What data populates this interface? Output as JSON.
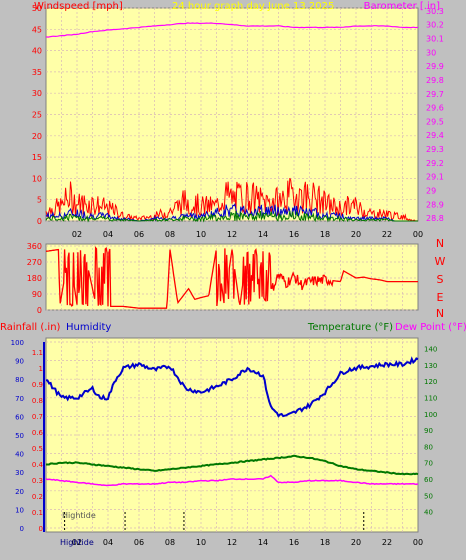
{
  "title": "24 hour graph day   June 13 2025",
  "colors": {
    "background": "#c0c0c0",
    "plot": "#ffffa8",
    "grid": "#d8b8b8",
    "red": "#ff0000",
    "blue": "#0000cc",
    "green": "#007700",
    "magenta": "#ff00ff",
    "yellow": "#ffff00",
    "black": "#000000"
  },
  "x_tick_labels": [
    "02",
    "04",
    "06",
    "08",
    "10",
    "12",
    "14",
    "16",
    "18",
    "20",
    "22",
    "00"
  ],
  "chart_data": [
    {
      "type": "line",
      "name": "wind-barometer",
      "left_label": "Windspeed [mph]",
      "right_label": "Barometer [.in]",
      "left_ticks": [
        "0",
        "5",
        "10",
        "15",
        "20",
        "25",
        "30",
        "35",
        "40",
        "45",
        "50"
      ],
      "right_ticks": [
        "28.8",
        "28.9",
        "29",
        "29.1",
        "29.2",
        "29.3",
        "29.4",
        "29.5",
        "29.6",
        "29.7",
        "29.8",
        "29.9",
        "30",
        "30.1",
        "30.2",
        "30.3"
      ],
      "x_range": [
        0,
        24
      ],
      "y_range_left": [
        0,
        50
      ],
      "y_range_right": [
        28.78,
        30.32
      ],
      "barometer": {
        "hours": [
          0,
          1,
          2,
          3,
          4,
          5,
          6,
          7,
          8,
          9,
          10,
          11,
          12,
          13,
          14,
          15,
          16,
          17,
          18,
          19,
          20,
          21,
          22,
          23,
          24
        ],
        "values": [
          30.11,
          30.12,
          30.13,
          30.15,
          30.16,
          30.17,
          30.18,
          30.19,
          30.2,
          30.21,
          30.21,
          30.21,
          30.2,
          30.19,
          30.19,
          30.19,
          30.18,
          30.18,
          30.18,
          30.18,
          30.19,
          30.19,
          30.19,
          30.18,
          30.18
        ]
      },
      "wind_profile": {
        "hours": [
          0,
          1,
          1.5,
          2,
          3,
          4,
          4.5,
          5,
          6,
          7,
          8,
          9,
          10,
          11,
          11.5,
          12,
          13,
          14,
          15,
          16,
          17,
          17.5,
          18,
          19,
          19.5,
          20,
          21,
          22,
          22.5,
          23,
          23.5,
          24
        ],
        "gust_max": [
          4,
          6,
          10,
          7,
          7,
          5,
          4,
          2,
          1,
          2,
          4,
          8,
          6,
          6,
          11,
          9,
          10,
          8,
          8,
          11,
          10,
          9,
          7,
          5,
          6,
          6,
          3,
          3,
          2,
          2,
          0.5,
          0
        ],
        "avg_max": [
          2,
          2,
          3,
          3,
          2,
          2,
          1,
          1,
          0,
          1,
          1,
          2,
          2,
          3,
          4,
          4,
          4,
          4,
          4,
          4,
          3,
          3,
          2,
          2,
          1,
          1,
          1,
          1,
          0,
          0,
          0,
          0
        ]
      }
    },
    {
      "type": "line",
      "name": "wind-direction",
      "right_labels": [
        "N",
        "W",
        "S",
        "E",
        "N"
      ],
      "left_ticks": [
        "0",
        "90",
        "180",
        "270",
        "360"
      ],
      "x_range": [
        0,
        24
      ],
      "y_range": [
        0,
        360
      ],
      "profile": {
        "hours": [
          0,
          0.8,
          0.9,
          1.5,
          2.0,
          2.5,
          3.2,
          3.5,
          4.0,
          5.0,
          6.0,
          7.0,
          7.8,
          8.0,
          8.5,
          9.2,
          9.6,
          10.0,
          10.5,
          11.0,
          11.5,
          12.0,
          12.5,
          13.0,
          13.5,
          14.0,
          14.5,
          15.0,
          15.5,
          16.0,
          16.5,
          17.0,
          18.0,
          19.0,
          19.2,
          19.6,
          20.0,
          20.5,
          21.0,
          21.5,
          22.0,
          23.0,
          24.0
        ],
        "values": [
          330,
          340,
          30,
          330,
          30,
          320,
          40,
          300,
          20,
          20,
          10,
          10,
          10,
          340,
          40,
          120,
          60,
          70,
          80,
          350,
          30,
          340,
          20,
          340,
          60,
          330,
          100,
          200,
          150,
          190,
          140,
          160,
          170,
          160,
          220,
          200,
          180,
          185,
          175,
          170,
          160,
          160,
          160
        ]
      }
    },
    {
      "type": "line",
      "name": "rain-humidity-temperature",
      "left_labels": [
        "Rainfall (.in)",
        "Humidity"
      ],
      "right_labels": [
        "Temperature (°F)",
        "Dew Point (°F)"
      ],
      "hum_ticks": [
        "0",
        "10",
        "20",
        "30",
        "40",
        "50",
        "60",
        "70",
        "80",
        "90",
        "100"
      ],
      "rain_ticks": [
        "0",
        "0.1",
        "0.2",
        "0.3",
        "0.4",
        "0.5",
        "0.6",
        "0.7",
        "0.8",
        "0.9",
        "1",
        "1.1"
      ],
      "temp_ticks": [
        "40",
        "50",
        "60",
        "70",
        "80",
        "90",
        "100",
        "110",
        "120",
        "130",
        "140"
      ],
      "x_range": [
        0,
        24
      ],
      "humidity_range": [
        0,
        100
      ],
      "temp_range": [
        30,
        144
      ],
      "humidity": {
        "hours": [
          0,
          0.5,
          1,
          2,
          3,
          3.5,
          4,
          4.5,
          5,
          6,
          7,
          8,
          9,
          10,
          11,
          12,
          13,
          14,
          14.5,
          15,
          15.5,
          16,
          17,
          18,
          19,
          19.5,
          20,
          21,
          22,
          23,
          24
        ],
        "values": [
          80,
          75,
          70,
          70,
          75,
          70,
          70,
          80,
          86,
          88,
          85,
          87,
          75,
          73,
          76,
          80,
          86,
          82,
          65,
          61,
          60,
          62,
          66,
          73,
          83,
          85,
          86,
          87,
          88,
          88,
          91
        ]
      },
      "temperature": {
        "hours": [
          0,
          1,
          2,
          3,
          4,
          5,
          6,
          7,
          8,
          9,
          10,
          11,
          12,
          13,
          14,
          15,
          16,
          17,
          18,
          19,
          20,
          21,
          22,
          23,
          24
        ],
        "values": [
          69,
          70,
          70,
          69,
          68,
          67,
          66,
          65,
          66,
          67,
          68,
          69,
          70,
          71,
          72,
          73,
          74,
          73,
          71,
          68,
          66,
          65,
          64,
          63,
          63
        ]
      },
      "dewpoint": {
        "hours": [
          0,
          1,
          2,
          3,
          4,
          5,
          6,
          7,
          8,
          9,
          10,
          11,
          12,
          13,
          14,
          14.5,
          15,
          16,
          17,
          18,
          19,
          20,
          21,
          22,
          23,
          24
        ],
        "values": [
          60,
          59,
          58,
          57,
          56,
          57,
          57,
          57,
          58,
          58,
          59,
          59,
          60,
          60,
          60,
          62,
          58,
          58,
          59,
          59,
          59,
          58,
          57,
          57,
          57,
          57
        ]
      },
      "tide_label": "Hightide",
      "tide_hours": [
        1.2,
        5.1,
        8.9,
        20.5
      ]
    }
  ]
}
